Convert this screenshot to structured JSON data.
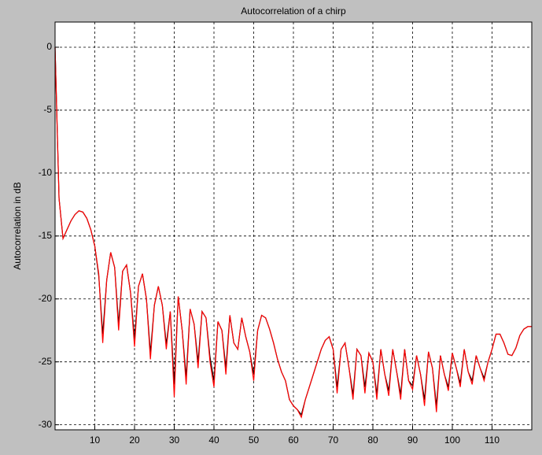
{
  "chart_data": {
    "type": "line",
    "title": "Autocorrelation of a chirp",
    "ylabel": "Autocorrelation in dB",
    "x": [
      0,
      1,
      2,
      3,
      4,
      5,
      6,
      7,
      8,
      9,
      10,
      11,
      12,
      13,
      14,
      15,
      16,
      17,
      18,
      19,
      20,
      21,
      22,
      23,
      24,
      25,
      26,
      27,
      28,
      29,
      30,
      31,
      32,
      33,
      34,
      35,
      36,
      37,
      38,
      39,
      40,
      41,
      42,
      43,
      44,
      45,
      46,
      47,
      48,
      49,
      50,
      51,
      52,
      53,
      54,
      55,
      56,
      57,
      58,
      59,
      60,
      61,
      62,
      63,
      64,
      65,
      66,
      67,
      68,
      69,
      70,
      71,
      72,
      73,
      74,
      75,
      76,
      77,
      78,
      79,
      80,
      81,
      82,
      83,
      84,
      85,
      86,
      87,
      88,
      89,
      90,
      91,
      92,
      93,
      94,
      95,
      96,
      97,
      98,
      99,
      100,
      101,
      102,
      103,
      104,
      105,
      106,
      107,
      108,
      109,
      110,
      111,
      112,
      113,
      114,
      115,
      116,
      117,
      118,
      119,
      120
    ],
    "series": [
      {
        "color": "#000000",
        "values": [
          0,
          -12,
          -15.2,
          -14.5,
          -13.8,
          -13.3,
          -13,
          -13.1,
          -13.6,
          -14.5,
          -15.8,
          -18.2,
          -22.8,
          -18.5,
          -16.3,
          -17.5,
          -22,
          -17.8,
          -17.3,
          -19.5,
          -23.2,
          -19,
          -18,
          -20,
          -24.3,
          -20.5,
          -19,
          -20.5,
          -23.6,
          -21,
          -26.8,
          -19.8,
          -22.5,
          -26.2,
          -20.8,
          -22,
          -25,
          -21,
          -21.5,
          -24.6,
          -26.5,
          -21.8,
          -22.5,
          -25.5,
          -21.3,
          -23.5,
          -24,
          -21.5,
          -23,
          -24.2,
          -26,
          -22.5,
          -21.3,
          -21.5,
          -22.4,
          -23.5,
          -24.8,
          -25.8,
          -26.5,
          -28,
          -28.5,
          -28.8,
          -29.2,
          -28,
          -27,
          -26,
          -25,
          -24,
          -23.3,
          -23,
          -24,
          -27,
          -24,
          -23.5,
          -25.5,
          -27.6,
          -24,
          -24.5,
          -27,
          -24.3,
          -25,
          -27.6,
          -24,
          -26,
          -27.3,
          -24,
          -25.8,
          -27.6,
          -24,
          -26.5,
          -26.9,
          -24.5,
          -26,
          -28,
          -24.2,
          -25.5,
          -28.5,
          -24.5,
          -26,
          -27,
          -24.3,
          -25.5,
          -26.7,
          -24,
          -25.8,
          -26.5,
          -24.5,
          -25.5,
          -26.3,
          -25,
          -24,
          -22.8,
          -22.8,
          -23.5,
          -24.4,
          -24.5,
          -23.9,
          -22.9,
          -22.4,
          -22.2,
          -22.2
        ]
      },
      {
        "color": "#ff0000",
        "values": [
          0,
          -12,
          -15.2,
          -14.5,
          -13.8,
          -13.3,
          -13,
          -13.1,
          -13.6,
          -14.5,
          -15.8,
          -18,
          -23.5,
          -18.5,
          -16.3,
          -17.5,
          -22.5,
          -17.8,
          -17.3,
          -19.5,
          -23.8,
          -19,
          -18,
          -20,
          -24.8,
          -20.5,
          -19,
          -20.5,
          -24,
          -21,
          -27.8,
          -19.8,
          -22.5,
          -26.8,
          -20.8,
          -22,
          -25.5,
          -21,
          -21.5,
          -25,
          -27,
          -21.8,
          -22.5,
          -26,
          -21.3,
          -23.5,
          -24,
          -21.5,
          -23,
          -24.2,
          -26.5,
          -22.5,
          -21.3,
          -21.5,
          -22.4,
          -23.5,
          -24.8,
          -25.8,
          -26.5,
          -28,
          -28.5,
          -28.8,
          -29.4,
          -28,
          -27,
          -26,
          -25,
          -24,
          -23.3,
          -23,
          -24,
          -27.5,
          -24,
          -23.5,
          -25.5,
          -28,
          -24,
          -24.5,
          -27.5,
          -24.3,
          -25,
          -28,
          -24,
          -26,
          -27.7,
          -24,
          -25.8,
          -28,
          -24,
          -26.5,
          -27.2,
          -24.5,
          -26,
          -28.5,
          -24.2,
          -25.5,
          -29,
          -24.5,
          -26,
          -27.3,
          -24.3,
          -25.5,
          -27,
          -24,
          -25.8,
          -26.8,
          -24.5,
          -25.5,
          -26.5,
          -25,
          -24,
          -22.8,
          -22.8,
          -23.5,
          -24.4,
          -24.5,
          -23.9,
          -22.9,
          -22.4,
          -22.2,
          -22.2
        ]
      }
    ],
    "xlim": [
      0,
      120
    ],
    "xticks": [
      10,
      20,
      30,
      40,
      50,
      60,
      70,
      80,
      90,
      100,
      110
    ],
    "ylim": [
      -30.4,
      2
    ],
    "yticks": [
      0,
      -5,
      -10,
      -15,
      -20,
      -25,
      -30
    ],
    "grid": true
  }
}
